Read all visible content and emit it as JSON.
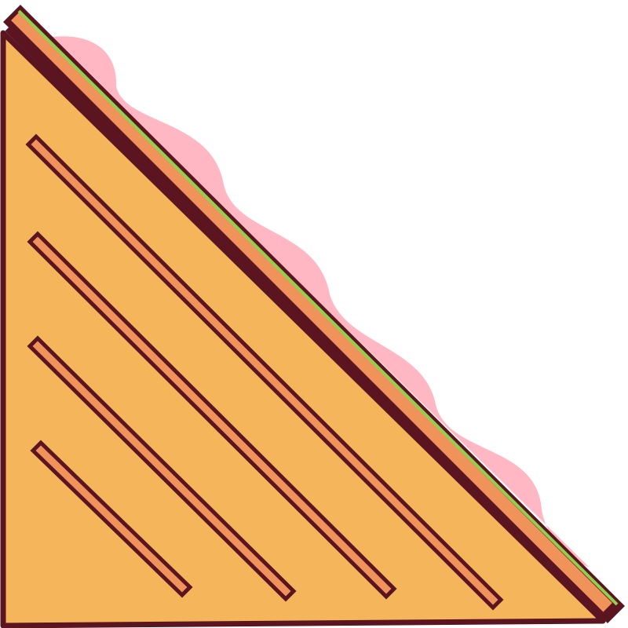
{
  "illustration": {
    "subject": "sandwich",
    "icon": "sandwich-icon",
    "colors": {
      "outline": "#5b1520",
      "bread": "#f5b55b",
      "grill_mark": "#f0935a",
      "ham": "#ffb8c3",
      "lettuce": "#8fd14f",
      "background": "#ffffff"
    }
  }
}
